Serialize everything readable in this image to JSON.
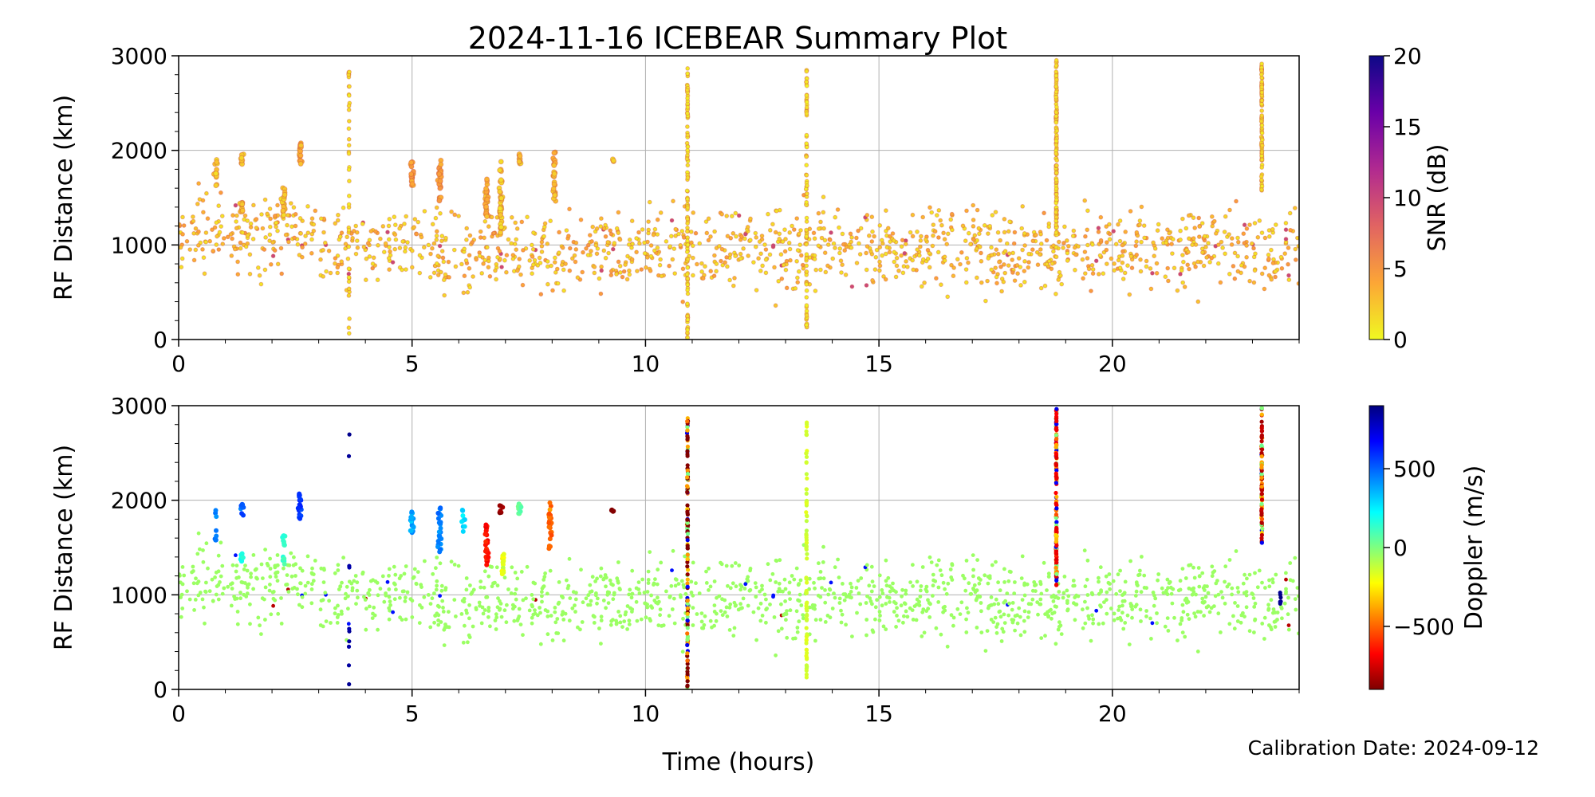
{
  "title": "2024-11-16 ICEBEAR Summary Plot",
  "footer": {
    "calibration": "Calibration Date: 2024-09-12"
  },
  "chart_data": [
    {
      "type": "scatter",
      "panel": "top",
      "title": "2024-11-16 ICEBEAR Summary Plot",
      "xlabel": "",
      "ylabel": "RF Distance (km)",
      "xlim": [
        0,
        24
      ],
      "ylim": [
        0,
        3000
      ],
      "xticks": [
        0,
        5,
        10,
        15,
        20
      ],
      "yticks": [
        0,
        1000,
        2000,
        3000
      ],
      "grid": true,
      "colorbar": {
        "label": "SNR (dB)",
        "range": [
          0,
          20
        ],
        "ticks": [
          0,
          5,
          10,
          15,
          20
        ],
        "colormap": "plasma_r",
        "colors": [
          "#f0f921",
          "#fca636",
          "#e16462",
          "#b12a90",
          "#6a00a8",
          "#0d0887"
        ]
      },
      "background": {
        "snr_range": [
          1,
          5
        ],
        "time_range": [
          0,
          24
        ],
        "distance_range": [
          300,
          1800
        ]
      },
      "clusters": [
        {
          "t": 0.8,
          "d0": 1600,
          "d1": 1900,
          "n": 14,
          "snr": 1
        },
        {
          "t": 1.35,
          "d0": 1350,
          "d1": 1460,
          "n": 14,
          "snr": 1
        },
        {
          "t": 1.35,
          "d0": 1820,
          "d1": 1960,
          "n": 10,
          "snr": 1
        },
        {
          "t": 2.25,
          "d0": 1300,
          "d1": 1640,
          "n": 20,
          "snr": 1
        },
        {
          "t": 2.6,
          "d0": 1800,
          "d1": 2080,
          "n": 18,
          "snr": 2
        },
        {
          "t": 5.0,
          "d0": 1620,
          "d1": 1880,
          "n": 20,
          "snr": 3
        },
        {
          "t": 5.6,
          "d0": 1450,
          "d1": 1920,
          "n": 28,
          "snr": 3
        },
        {
          "t": 6.6,
          "d0": 1300,
          "d1": 1700,
          "n": 30,
          "snr": 2
        },
        {
          "t": 6.9,
          "d0": 1100,
          "d1": 1900,
          "n": 40,
          "snr": 1
        },
        {
          "t": 7.3,
          "d0": 1850,
          "d1": 1970,
          "n": 12,
          "snr": 1
        },
        {
          "t": 8.05,
          "d0": 1450,
          "d1": 1980,
          "n": 28,
          "snr": 2
        },
        {
          "t": 9.3,
          "d0": 1880,
          "d1": 1920,
          "n": 4,
          "snr": 1
        }
      ],
      "stripes": [
        {
          "t": 3.65,
          "d0": 20,
          "d1": 2950,
          "n": 40,
          "snr": 0.5
        },
        {
          "t": 10.9,
          "d0": 0,
          "d1": 2880,
          "n": 120,
          "snr": 0.3
        },
        {
          "t": 13.45,
          "d0": 100,
          "d1": 2880,
          "n": 90,
          "snr": 0.3
        },
        {
          "t": 18.8,
          "d0": 1100,
          "d1": 2980,
          "n": 140,
          "snr": 0.5
        },
        {
          "t": 23.2,
          "d0": 1550,
          "d1": 2980,
          "n": 90,
          "snr": 0.5
        }
      ]
    },
    {
      "type": "scatter",
      "panel": "bottom",
      "xlabel": "Time (hours)",
      "ylabel": "RF Distance (km)",
      "xlim": [
        0,
        24
      ],
      "ylim": [
        0,
        3000
      ],
      "xticks": [
        0,
        5,
        10,
        15,
        20
      ],
      "yticks": [
        0,
        1000,
        2000,
        3000
      ],
      "grid": true,
      "colorbar": {
        "label": "Doppler (m/s)",
        "range": [
          -900,
          900
        ],
        "ticks": [
          -500,
          0,
          500
        ],
        "tick_labels": [
          "−500",
          "0",
          "500"
        ],
        "colormap": "jet_r",
        "colors": [
          "#7f0000",
          "#ff0000",
          "#ff7f00",
          "#ffff00",
          "#7fff7f",
          "#00ffff",
          "#007fff",
          "#0000ff",
          "#00007f"
        ]
      },
      "background": {
        "doppler_mean": -50,
        "time_range": [
          0,
          24
        ],
        "distance_range": [
          300,
          1800
        ]
      },
      "clusters": [
        {
          "t": 0.8,
          "d0": 1500,
          "d1": 1900,
          "n": 10,
          "doppler": 450
        },
        {
          "t": 1.35,
          "d0": 1350,
          "d1": 1450,
          "n": 12,
          "doppler": 200
        },
        {
          "t": 1.35,
          "d0": 1820,
          "d1": 1960,
          "n": 10,
          "doppler": 520
        },
        {
          "t": 2.25,
          "d0": 1300,
          "d1": 1650,
          "n": 16,
          "doppler": 150
        },
        {
          "t": 2.6,
          "d0": 1800,
          "d1": 2080,
          "n": 18,
          "doppler": 600
        },
        {
          "t": 5.0,
          "d0": 1620,
          "d1": 1880,
          "n": 20,
          "doppler": 380
        },
        {
          "t": 5.6,
          "d0": 1450,
          "d1": 1920,
          "n": 28,
          "doppler": 450
        },
        {
          "t": 6.1,
          "d0": 1650,
          "d1": 1900,
          "n": 10,
          "doppler": 300
        },
        {
          "t": 6.6,
          "d0": 1300,
          "d1": 1750,
          "n": 30,
          "doppler": -650
        },
        {
          "t": 6.95,
          "d0": 1200,
          "d1": 1500,
          "n": 14,
          "doppler": -200
        },
        {
          "t": 6.9,
          "d0": 1850,
          "d1": 1960,
          "n": 8,
          "doppler": -850
        },
        {
          "t": 7.3,
          "d0": 1850,
          "d1": 1970,
          "n": 12,
          "doppler": 50
        },
        {
          "t": 7.95,
          "d0": 1450,
          "d1": 1980,
          "n": 28,
          "doppler": -500
        },
        {
          "t": 9.3,
          "d0": 1880,
          "d1": 1920,
          "n": 4,
          "doppler": -900
        }
      ],
      "stripes": [
        {
          "t": 3.65,
          "d0": 20,
          "d1": 2950,
          "n": 10,
          "doppler": 850
        },
        {
          "t": 10.9,
          "d0": 0,
          "d1": 2880,
          "n": 130,
          "doppler": -900,
          "mixed": true
        },
        {
          "t": 13.45,
          "d0": 80,
          "d1": 2880,
          "n": 80,
          "doppler": -150
        },
        {
          "t": 18.8,
          "d0": 1100,
          "d1": 2980,
          "n": 150,
          "doppler": -700,
          "mixed": true
        },
        {
          "t": 23.2,
          "d0": 1550,
          "d1": 2980,
          "n": 90,
          "doppler": -800,
          "mixed": true
        },
        {
          "t": 23.6,
          "d0": 850,
          "d1": 1050,
          "n": 6,
          "doppler": 880
        }
      ]
    }
  ]
}
